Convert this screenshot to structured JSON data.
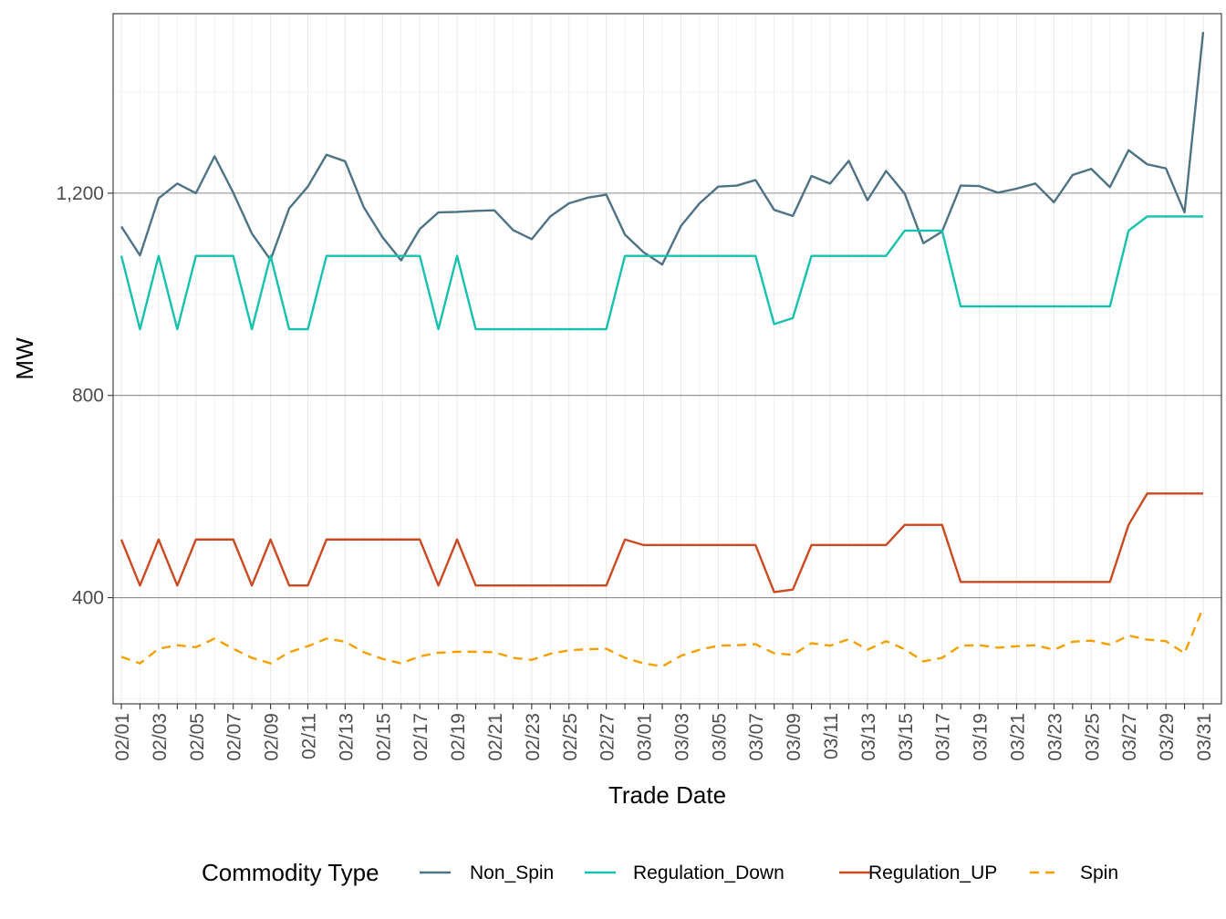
{
  "chart_data": {
    "type": "line",
    "xlabel": "Trade Date",
    "ylabel": "MW",
    "legend_title": "Commodity Type",
    "legend_position": "bottom",
    "grid": true,
    "ylim": [
      190,
      1555
    ],
    "y_ticks": [
      400,
      800,
      1200
    ],
    "y_tick_labels": [
      "400",
      "800",
      "1,200"
    ],
    "x_tick_labels": [
      "02/01",
      "02/03",
      "02/05",
      "02/07",
      "02/09",
      "02/11",
      "02/13",
      "02/15",
      "02/17",
      "02/19",
      "02/21",
      "02/23",
      "02/25",
      "02/27",
      "03/01",
      "03/03",
      "03/05",
      "03/07",
      "03/09",
      "03/11",
      "03/13",
      "03/15",
      "03/17",
      "03/19",
      "03/21",
      "03/23",
      "03/25",
      "03/27",
      "03/29",
      "03/31"
    ],
    "x": [
      "02/01",
      "02/02",
      "02/03",
      "02/04",
      "02/05",
      "02/06",
      "02/07",
      "02/08",
      "02/09",
      "02/10",
      "02/11",
      "02/12",
      "02/13",
      "02/14",
      "02/15",
      "02/16",
      "02/17",
      "02/18",
      "02/19",
      "02/20",
      "02/21",
      "02/22",
      "02/23",
      "02/24",
      "02/25",
      "02/26",
      "02/27",
      "02/28",
      "03/01",
      "03/02",
      "03/03",
      "03/04",
      "03/05",
      "03/06",
      "03/07",
      "03/08",
      "03/09",
      "03/10",
      "03/11",
      "03/12",
      "03/13",
      "03/14",
      "03/15",
      "03/16",
      "03/17",
      "03/18",
      "03/19",
      "03/20",
      "03/21",
      "03/22",
      "03/23",
      "03/24",
      "03/25",
      "03/26",
      "03/27",
      "03/28",
      "03/29",
      "03/30",
      "03/31"
    ],
    "series": [
      {
        "name": "Non_Spin",
        "color": "#4e7385",
        "dashed": false,
        "values": [
          1134,
          1077,
          1190,
          1219,
          1200,
          1273,
          1201,
          1120,
          1068,
          1170,
          1213,
          1276,
          1263,
          1172,
          1113,
          1067,
          1129,
          1162,
          1163,
          1165,
          1166,
          1127,
          1109,
          1154,
          1180,
          1191,
          1197,
          1118,
          1083,
          1059,
          1135,
          1180,
          1213,
          1215,
          1226,
          1167,
          1155,
          1234,
          1219,
          1264,
          1186,
          1244,
          1199,
          1101,
          1124,
          1215,
          1214,
          1201,
          1209,
          1219,
          1182,
          1236,
          1248,
          1212,
          1285,
          1257,
          1249,
          1162,
          1519
        ]
      },
      {
        "name": "Regulation_Down",
        "color": "#14c2ad",
        "dashed": false,
        "values": [
          1076,
          931,
          1076,
          931,
          1076,
          1076,
          1076,
          931,
          1076,
          931,
          931,
          1076,
          1076,
          1076,
          1076,
          1076,
          1076,
          931,
          1076,
          931,
          931,
          931,
          931,
          931,
          931,
          931,
          931,
          1076,
          1076,
          1076,
          1076,
          1076,
          1076,
          1076,
          1076,
          941,
          953,
          1076,
          1076,
          1076,
          1076,
          1076,
          1126,
          1126,
          1126,
          976,
          976,
          976,
          976,
          976,
          976,
          976,
          976,
          976,
          1126,
          1154,
          1154,
          1154,
          1154
        ]
      },
      {
        "name": "Regulation_UP",
        "color": "#cc4a21",
        "dashed": false,
        "values": [
          515,
          424,
          515,
          424,
          515,
          515,
          515,
          424,
          515,
          424,
          424,
          515,
          515,
          515,
          515,
          515,
          515,
          424,
          515,
          424,
          424,
          424,
          424,
          424,
          424,
          424,
          424,
          515,
          504,
          504,
          504,
          504,
          504,
          504,
          504,
          411,
          416,
          504,
          504,
          504,
          504,
          504,
          544,
          544,
          544,
          431,
          431,
          431,
          431,
          431,
          431,
          431,
          431,
          431,
          544,
          606,
          606,
          606,
          606
        ]
      },
      {
        "name": "Spin",
        "color": "#f5a000",
        "dashed": true,
        "values": [
          283,
          270,
          299,
          306,
          302,
          319,
          299,
          281,
          270,
          292,
          304,
          319,
          313,
          292,
          279,
          270,
          284,
          291,
          293,
          293,
          292,
          281,
          277,
          289,
          296,
          298,
          299,
          281,
          270,
          264,
          285,
          297,
          305,
          306,
          308,
          290,
          287,
          310,
          305,
          318,
          297,
          314,
          298,
          274,
          281,
          305,
          306,
          301,
          304,
          306,
          297,
          313,
          315,
          307,
          325,
          317,
          314,
          290,
          381
        ]
      }
    ]
  }
}
